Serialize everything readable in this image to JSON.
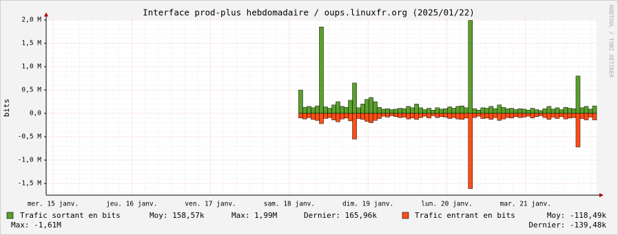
{
  "chart_data": {
    "type": "area",
    "title": "Interface prod-plus hebdomadaire / oups.linuxfr.org (2025/01/22)",
    "y_label": "bits",
    "side_label": "RRDTOOL / TOBI OETIKER",
    "x_labels": [
      "mer. 15 janv.",
      "jeu. 16 janv.",
      "ven. 17 janv.",
      "sam. 18 janv.",
      "dim. 19 janv.",
      "lun. 20 janv.",
      "mar. 21 janv."
    ],
    "ylim": [
      -1750000,
      2015000
    ],
    "yticks": [
      {
        "value": 2000000,
        "label": "2,0 M"
      },
      {
        "value": 1500000,
        "label": "1,5 M"
      },
      {
        "value": 1000000,
        "label": "1,0 M"
      },
      {
        "value": 500000,
        "label": "0,5 M"
      },
      {
        "value": 0,
        "label": "0,0"
      },
      {
        "value": -500000,
        "label": "-0,5 M"
      },
      {
        "value": -1000000,
        "label": "-1,0 M"
      },
      {
        "value": -1500000,
        "label": "-1,5 M"
      }
    ],
    "grid": true,
    "series": [
      {
        "name": "Trafic sortant en bits",
        "color": "#5aa02c",
        "stats": [
          "Moy: 158,57k",
          "Max: 1,99M",
          "Dernier: 165,96k"
        ],
        "values": [
          null,
          null,
          null,
          null,
          null,
          null,
          null,
          null,
          null,
          null,
          null,
          null,
          null,
          null,
          null,
          null,
          null,
          null,
          null,
          null,
          null,
          null,
          null,
          null,
          null,
          null,
          null,
          null,
          null,
          null,
          null,
          null,
          null,
          null,
          null,
          null,
          null,
          null,
          null,
          null,
          null,
          null,
          null,
          null,
          null,
          null,
          null,
          null,
          null,
          null,
          null,
          null,
          null,
          null,
          null,
          null,
          null,
          null,
          null,
          null,
          null,
          500000,
          130000,
          150000,
          120000,
          160000,
          1850000,
          140000,
          110000,
          180000,
          250000,
          150000,
          130000,
          280000,
          650000,
          120000,
          200000,
          300000,
          340000,
          250000,
          130000,
          90000,
          100000,
          80000,
          90000,
          110000,
          100000,
          150000,
          120000,
          200000,
          120000,
          80000,
          110000,
          70000,
          120000,
          90000,
          100000,
          140000,
          110000,
          150000,
          160000,
          120000,
          1990000,
          100000,
          70000,
          120000,
          110000,
          150000,
          100000,
          180000,
          130000,
          100000,
          110000,
          80000,
          100000,
          90000,
          70000,
          110000,
          80000,
          60000,
          100000,
          150000,
          90000,
          120000,
          80000,
          130000,
          110000,
          100000,
          800000,
          120000,
          150000,
          90000,
          160000
        ]
      },
      {
        "name": "Trafic entrant en bits",
        "color": "#ff4e17",
        "stats": [
          "Moy: -118,49k",
          "Max: -1,61M",
          "Dernier: -139,48k"
        ],
        "values": [
          null,
          null,
          null,
          null,
          null,
          null,
          null,
          null,
          null,
          null,
          null,
          null,
          null,
          null,
          null,
          null,
          null,
          null,
          null,
          null,
          null,
          null,
          null,
          null,
          null,
          null,
          null,
          null,
          null,
          null,
          null,
          null,
          null,
          null,
          null,
          null,
          null,
          null,
          null,
          null,
          null,
          null,
          null,
          null,
          null,
          null,
          null,
          null,
          null,
          null,
          null,
          null,
          null,
          null,
          null,
          null,
          null,
          null,
          null,
          null,
          null,
          -100000,
          -120000,
          -90000,
          -130000,
          -150000,
          -220000,
          -110000,
          -90000,
          -140000,
          -180000,
          -120000,
          -100000,
          -160000,
          -550000,
          -110000,
          -130000,
          -170000,
          -200000,
          -150000,
          -110000,
          -60000,
          -80000,
          -50000,
          -70000,
          -90000,
          -80000,
          -120000,
          -100000,
          -130000,
          -90000,
          -60000,
          -100000,
          -50000,
          -90000,
          -70000,
          -80000,
          -110000,
          -90000,
          -120000,
          -130000,
          -100000,
          -1610000,
          -90000,
          -60000,
          -110000,
          -100000,
          -130000,
          -90000,
          -150000,
          -120000,
          -90000,
          -100000,
          -70000,
          -90000,
          -80000,
          -60000,
          -100000,
          -70000,
          -50000,
          -90000,
          -130000,
          -80000,
          -110000,
          -70000,
          -120000,
          -100000,
          -90000,
          -720000,
          -110000,
          -140000,
          -80000,
          -140000
        ]
      }
    ]
  }
}
